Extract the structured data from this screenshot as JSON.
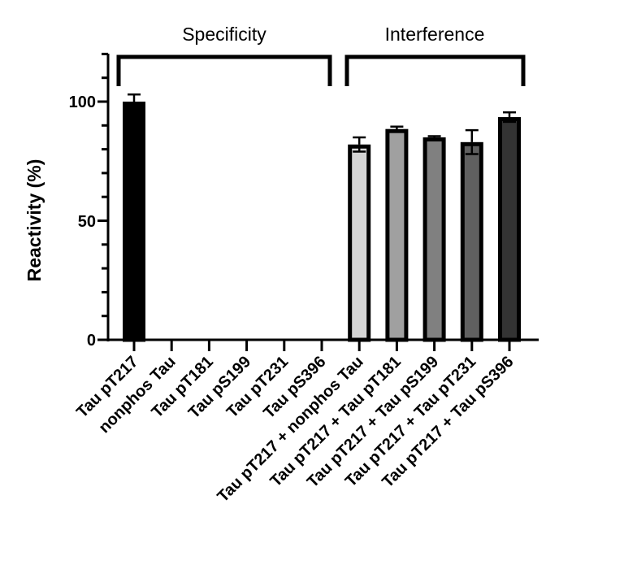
{
  "chart_data": {
    "type": "bar",
    "title": "",
    "xlabel": "",
    "ylabel": "Reactivity (%)",
    "ylim": [
      0,
      120
    ],
    "yticks_major": [
      0,
      50,
      100
    ],
    "ytick_labels": [
      "0",
      "50",
      "100"
    ],
    "yticks_minor_step": 10,
    "grid": false,
    "legend": null,
    "categories": [
      "Tau pT217",
      "nonphos Tau",
      "Tau pT181",
      "Tau pS199",
      "Tau pT231",
      "Tau pS396",
      "Tau pT217 + nonphos Tau",
      "Tau pT217 + Tau pT181",
      "Tau pT217 + Tau pS199",
      "Tau pT217 + Tau pT231",
      "Tau pT217 + Tau pS396"
    ],
    "values": [
      100,
      0,
      0,
      0,
      0,
      0,
      82,
      88.5,
      85,
      83,
      93.5
    ],
    "errors": [
      3,
      0,
      0,
      0,
      0,
      0,
      3,
      1,
      0.5,
      5,
      2
    ],
    "bar_colors": [
      "#000000",
      "#ffffff",
      "#ffffff",
      "#ffffff",
      "#ffffff",
      "#ffffff",
      "#d4d4d4",
      "#a0a0a0",
      "#808080",
      "#606060",
      "#333333"
    ],
    "annotations": [
      {
        "text": "Specificity",
        "type": "bracket",
        "span": [
          "Tau pT217",
          "Tau pS396"
        ]
      },
      {
        "text": "Interference",
        "type": "bracket",
        "span": [
          "Tau pT217 + nonphos Tau",
          "Tau pT217 + Tau pS396"
        ]
      }
    ]
  },
  "groups": {
    "specificity": "Specificity",
    "interference": "Interference"
  },
  "axis": {
    "ylabel": "Reactivity (%)",
    "tick_0": "0",
    "tick_50": "50",
    "tick_100": "100"
  }
}
